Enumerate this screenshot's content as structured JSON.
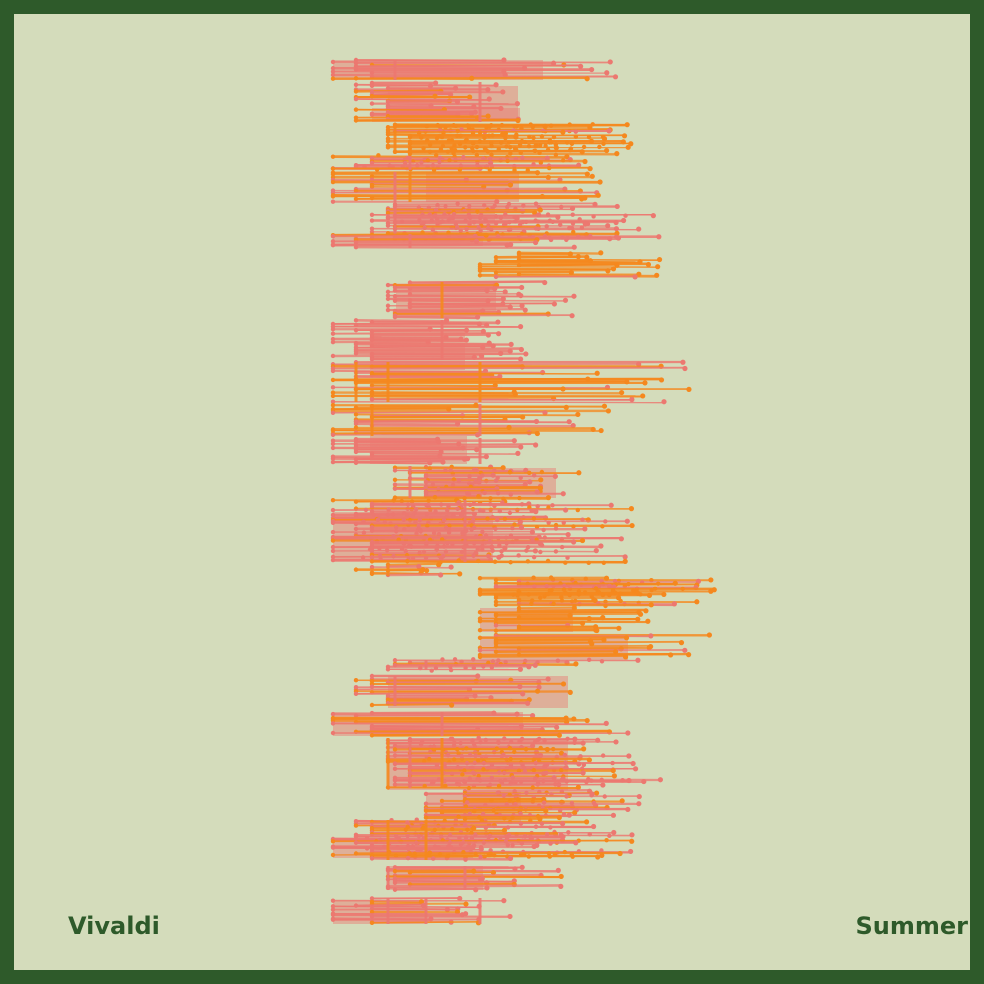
{
  "artwork": {
    "composer": "Vivaldi",
    "piece": "Summer"
  },
  "colors": {
    "frame": "#2e5a2a",
    "background": "#d4dcbb",
    "salmon": "#ec7870",
    "orange": "#f5881e",
    "text": "#2e5a2a"
  }
}
